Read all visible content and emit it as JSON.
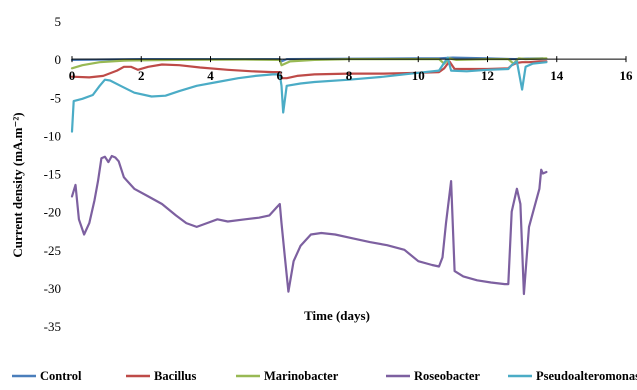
{
  "chart_data": {
    "type": "line",
    "xlabel": "Time (days)",
    "ylabel": "Current density (mA.m⁻²)",
    "xlim": [
      0,
      16
    ],
    "ylim": [
      -35,
      5
    ],
    "x_ticks": [
      0,
      2,
      4,
      6,
      8,
      10,
      12,
      14,
      16
    ],
    "y_ticks": [
      5,
      0,
      -5,
      -10,
      -15,
      -20,
      -25,
      -30,
      -35
    ],
    "x_tick_labels": [
      "0",
      "2",
      "4",
      "6",
      "8",
      "10",
      "12",
      "14",
      "16"
    ],
    "y_tick_labels": [
      "5",
      "0",
      "-5",
      "-10",
      "-15",
      "-20",
      "-25",
      "-30",
      "-35"
    ],
    "grid": false,
    "legend": "bottom",
    "series": [
      {
        "name": "Control",
        "color": "#4a7ebb",
        "points": [
          [
            0,
            -0.1
          ],
          [
            1,
            -0.05
          ],
          [
            2,
            0
          ],
          [
            4,
            0
          ],
          [
            6,
            0
          ],
          [
            6.05,
            -0.3
          ],
          [
            6.2,
            0
          ],
          [
            8,
            0.05
          ],
          [
            10,
            0.1
          ],
          [
            10.6,
            0.1
          ],
          [
            11,
            0.2
          ],
          [
            12,
            0.1
          ],
          [
            12.8,
            0
          ],
          [
            13,
            0.05
          ],
          [
            13.6,
            0.1
          ]
        ]
      },
      {
        "name": "Bacillus",
        "color": "#be4b48",
        "points": [
          [
            0,
            -2.3
          ],
          [
            0.5,
            -2.4
          ],
          [
            0.9,
            -2.2
          ],
          [
            1.3,
            -1.5
          ],
          [
            1.5,
            -1.0
          ],
          [
            1.7,
            -1.0
          ],
          [
            1.9,
            -1.4
          ],
          [
            2.2,
            -1.0
          ],
          [
            2.6,
            -0.7
          ],
          [
            3.1,
            -0.8
          ],
          [
            3.7,
            -1.1
          ],
          [
            4.5,
            -1.4
          ],
          [
            5.2,
            -1.6
          ],
          [
            5.8,
            -1.7
          ],
          [
            6.0,
            -1.7
          ],
          [
            6.05,
            -2.5
          ],
          [
            6.2,
            -2.5
          ],
          [
            6.5,
            -2.2
          ],
          [
            7.0,
            -2.0
          ],
          [
            8,
            -1.9
          ],
          [
            9,
            -1.9
          ],
          [
            10,
            -1.8
          ],
          [
            10.6,
            -1.7
          ],
          [
            10.75,
            -1.2
          ],
          [
            10.9,
            -0.3
          ],
          [
            11.05,
            -1.3
          ],
          [
            11.5,
            -1.3
          ],
          [
            12.0,
            -1.3
          ],
          [
            12.6,
            -1.2
          ],
          [
            12.7,
            -0.8
          ],
          [
            12.85,
            -0.5
          ],
          [
            13,
            -0.4
          ],
          [
            13.2,
            -0.4
          ],
          [
            13.5,
            -0.3
          ],
          [
            13.7,
            -0.3
          ]
        ]
      },
      {
        "name": "Marinobacter",
        "color": "#98b954",
        "points": [
          [
            0,
            -1.2
          ],
          [
            0.3,
            -0.8
          ],
          [
            0.8,
            -0.4
          ],
          [
            1.5,
            -0.2
          ],
          [
            3,
            -0.1
          ],
          [
            5,
            -0.05
          ],
          [
            6,
            -0.1
          ],
          [
            6.05,
            -0.8
          ],
          [
            6.3,
            -0.3
          ],
          [
            7,
            -0.1
          ],
          [
            8,
            0
          ],
          [
            10,
            0
          ],
          [
            10.6,
            0
          ],
          [
            10.75,
            -0.6
          ],
          [
            10.9,
            0.1
          ],
          [
            11.1,
            -0.1
          ],
          [
            12,
            0
          ],
          [
            12.6,
            0
          ],
          [
            12.75,
            -0.6
          ],
          [
            12.9,
            0.1
          ],
          [
            13.1,
            0
          ],
          [
            13.7,
            0.1
          ]
        ]
      },
      {
        "name": "Roseobacter",
        "color": "#7d60a0",
        "points": [
          [
            0,
            -18.0
          ],
          [
            0.1,
            -16.5
          ],
          [
            0.2,
            -21.0
          ],
          [
            0.35,
            -23.0
          ],
          [
            0.5,
            -21.5
          ],
          [
            0.65,
            -18.5
          ],
          [
            0.75,
            -16.0
          ],
          [
            0.85,
            -13.0
          ],
          [
            0.95,
            -12.8
          ],
          [
            1.05,
            -13.5
          ],
          [
            1.15,
            -12.7
          ],
          [
            1.25,
            -12.9
          ],
          [
            1.35,
            -13.4
          ],
          [
            1.5,
            -15.5
          ],
          [
            1.8,
            -17.0
          ],
          [
            2.2,
            -18.0
          ],
          [
            2.6,
            -19.0
          ],
          [
            3.0,
            -20.5
          ],
          [
            3.3,
            -21.5
          ],
          [
            3.6,
            -22.0
          ],
          [
            3.9,
            -21.5
          ],
          [
            4.2,
            -21.0
          ],
          [
            4.5,
            -21.3
          ],
          [
            5.0,
            -21.0
          ],
          [
            5.4,
            -20.8
          ],
          [
            5.7,
            -20.5
          ],
          [
            5.9,
            -19.5
          ],
          [
            6.0,
            -19.0
          ],
          [
            6.05,
            -21.5
          ],
          [
            6.15,
            -26.0
          ],
          [
            6.25,
            -30.5
          ],
          [
            6.4,
            -26.5
          ],
          [
            6.6,
            -24.5
          ],
          [
            6.9,
            -23.0
          ],
          [
            7.2,
            -22.8
          ],
          [
            7.6,
            -23.0
          ],
          [
            8.1,
            -23.5
          ],
          [
            8.6,
            -24.0
          ],
          [
            9.1,
            -24.4
          ],
          [
            9.6,
            -25.0
          ],
          [
            10.0,
            -26.5
          ],
          [
            10.4,
            -27.0
          ],
          [
            10.6,
            -27.2
          ],
          [
            10.7,
            -26.0
          ],
          [
            10.8,
            -21.5
          ],
          [
            10.95,
            -16.0
          ],
          [
            11.05,
            -27.8
          ],
          [
            11.3,
            -28.5
          ],
          [
            11.7,
            -29.0
          ],
          [
            12.1,
            -29.3
          ],
          [
            12.5,
            -29.5
          ],
          [
            12.6,
            -29.5
          ],
          [
            12.7,
            -20.0
          ],
          [
            12.85,
            -17.0
          ],
          [
            12.95,
            -19.0
          ],
          [
            13.05,
            -30.8
          ],
          [
            13.2,
            -22.0
          ],
          [
            13.35,
            -19.5
          ],
          [
            13.5,
            -17.0
          ],
          [
            13.55,
            -14.5
          ],
          [
            13.6,
            -15.0
          ],
          [
            13.7,
            -14.8
          ]
        ]
      },
      {
        "name": "Pseudoalteromonas",
        "color": "#4bacc6",
        "points": [
          [
            0,
            -9.5
          ],
          [
            0.05,
            -5.5
          ],
          [
            0.3,
            -5.2
          ],
          [
            0.6,
            -4.7
          ],
          [
            0.8,
            -3.5
          ],
          [
            0.95,
            -2.7
          ],
          [
            1.1,
            -2.8
          ],
          [
            1.4,
            -3.5
          ],
          [
            1.8,
            -4.4
          ],
          [
            2.3,
            -4.9
          ],
          [
            2.7,
            -4.8
          ],
          [
            3.1,
            -4.2
          ],
          [
            3.6,
            -3.5
          ],
          [
            4.2,
            -3.0
          ],
          [
            4.8,
            -2.5
          ],
          [
            5.3,
            -2.2
          ],
          [
            5.8,
            -2.0
          ],
          [
            6.0,
            -2.0
          ],
          [
            6.05,
            -3.5
          ],
          [
            6.1,
            -7.0
          ],
          [
            6.2,
            -3.5
          ],
          [
            6.6,
            -3.2
          ],
          [
            7.0,
            -3.0
          ],
          [
            8,
            -2.7
          ],
          [
            9,
            -2.3
          ],
          [
            10,
            -1.8
          ],
          [
            10.6,
            -1.5
          ],
          [
            10.75,
            -0.5
          ],
          [
            10.85,
            0.2
          ],
          [
            10.95,
            -1.5
          ],
          [
            11.4,
            -1.6
          ],
          [
            12.0,
            -1.4
          ],
          [
            12.6,
            -1.3
          ],
          [
            12.7,
            -0.8
          ],
          [
            12.85,
            -0.3
          ],
          [
            13.0,
            -4.0
          ],
          [
            13.1,
            -1.0
          ],
          [
            13.3,
            -0.6
          ],
          [
            13.7,
            -0.4
          ]
        ]
      }
    ]
  }
}
